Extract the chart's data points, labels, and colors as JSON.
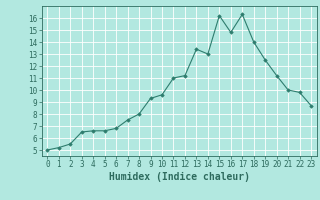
{
  "x": [
    0,
    1,
    2,
    3,
    4,
    5,
    6,
    7,
    8,
    9,
    10,
    11,
    12,
    13,
    14,
    15,
    16,
    17,
    18,
    19,
    20,
    21,
    22,
    23
  ],
  "y": [
    5.0,
    5.2,
    5.5,
    6.5,
    6.6,
    6.6,
    6.8,
    7.5,
    8.0,
    9.3,
    9.6,
    11.0,
    11.2,
    13.4,
    13.0,
    16.2,
    14.8,
    16.3,
    14.0,
    12.5,
    11.2,
    10.0,
    9.8,
    8.7
  ],
  "line_color": "#2e7d6e",
  "marker": "D",
  "marker_size": 1.8,
  "bg_color": "#b2e8e0",
  "grid_color": "#ffffff",
  "xlabel": "Humidex (Indice chaleur)",
  "xlim": [
    -0.5,
    23.5
  ],
  "ylim": [
    4.5,
    17
  ],
  "yticks": [
    5,
    6,
    7,
    8,
    9,
    10,
    11,
    12,
    13,
    14,
    15,
    16
  ],
  "xticks": [
    0,
    1,
    2,
    3,
    4,
    5,
    6,
    7,
    8,
    9,
    10,
    11,
    12,
    13,
    14,
    15,
    16,
    17,
    18,
    19,
    20,
    21,
    22,
    23
  ],
  "tick_color": "#2e6b5e",
  "label_fontsize": 5.5,
  "xlabel_fontsize": 7.0,
  "linewidth": 0.8
}
